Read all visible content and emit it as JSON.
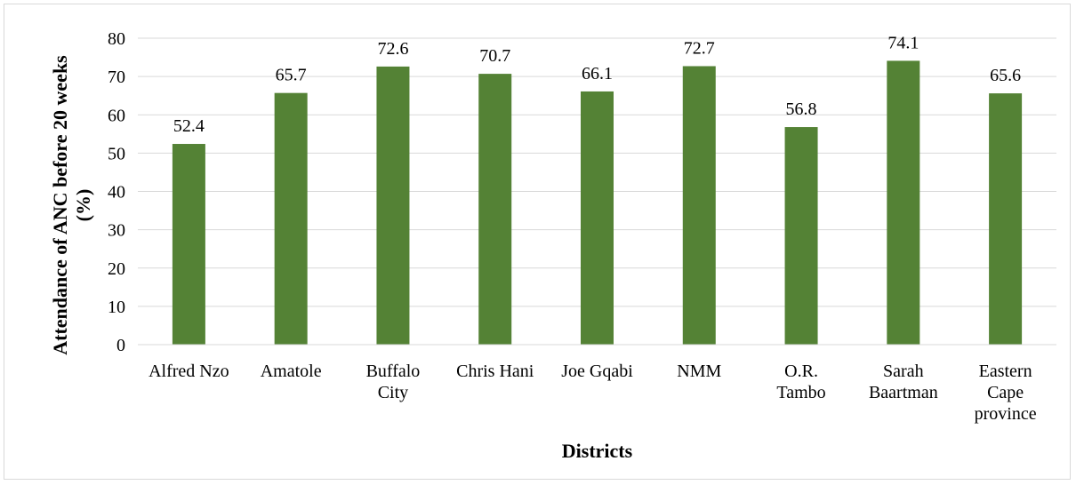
{
  "chart_data": {
    "type": "bar",
    "title": "",
    "xlabel": "Districts",
    "ylabel_lines": [
      "Attendance of ANC before 20 weeks",
      "(%)"
    ],
    "categories": [
      [
        "Alfred Nzo"
      ],
      [
        "Amatole"
      ],
      [
        "Buffalo",
        "City"
      ],
      [
        "Chris Hani"
      ],
      [
        "Joe Gqabi"
      ],
      [
        "NMM"
      ],
      [
        "O.R.",
        "Tambo"
      ],
      [
        "Sarah",
        "Baartman"
      ],
      [
        "Eastern",
        "Cape",
        "province"
      ]
    ],
    "values": [
      52.4,
      65.7,
      72.6,
      70.7,
      66.1,
      72.7,
      56.8,
      74.1,
      65.6
    ],
    "value_labels": [
      "52.4",
      "65.7",
      "72.6",
      "70.7",
      "66.1",
      "72.7",
      "56.8",
      "74.1",
      "65.6"
    ],
    "ylim": [
      0,
      80
    ],
    "yticks": [
      "0",
      "10",
      "20",
      "30",
      "40",
      "50",
      "60",
      "70",
      "80"
    ],
    "ytick_values": [
      0,
      10,
      20,
      30,
      40,
      50,
      60,
      70,
      80
    ],
    "grid": true,
    "legend": "none",
    "bar_color": "#548235",
    "grid_color": "#d9d9d9"
  }
}
